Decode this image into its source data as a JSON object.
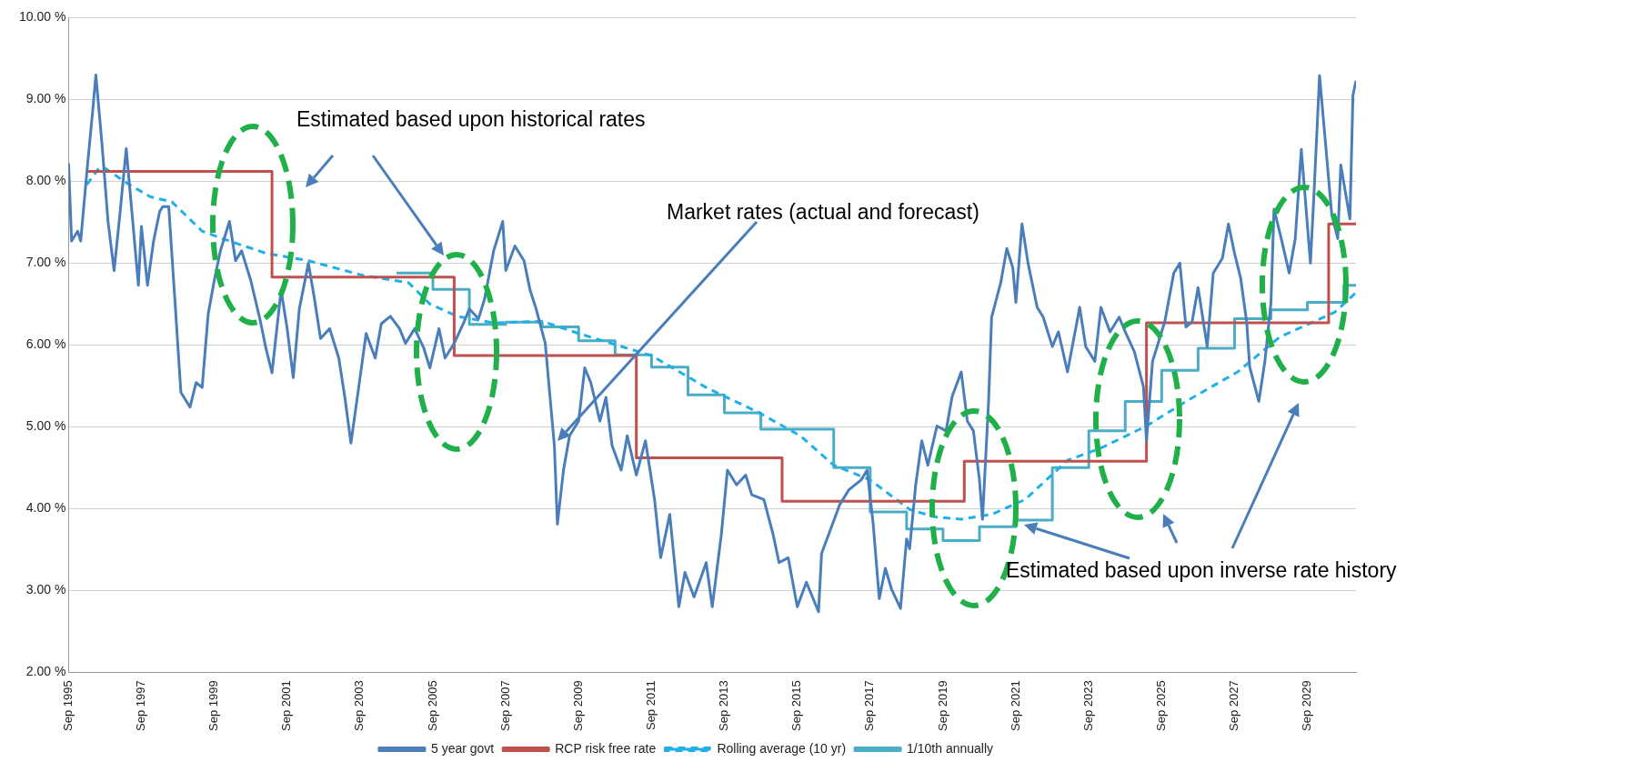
{
  "chart_data": {
    "type": "line",
    "xlim": [
      "1995-09",
      "2031-01"
    ],
    "ylim": [
      2,
      10
    ],
    "xticks": [
      {
        "value": "1995-09",
        "label": "Sep 1995"
      },
      {
        "value": "1997-09",
        "label": "Sep 1997"
      },
      {
        "value": "1999-09",
        "label": "Sep 1999"
      },
      {
        "value": "2001-09",
        "label": "Sep 2001"
      },
      {
        "value": "2003-09",
        "label": "Sep 2003"
      },
      {
        "value": "2005-09",
        "label": "Sep 2005"
      },
      {
        "value": "2007-09",
        "label": "Sep 2007"
      },
      {
        "value": "2009-09",
        "label": "Sep 2009"
      },
      {
        "value": "2011-09",
        "label": "Sep 2011"
      },
      {
        "value": "2013-09",
        "label": "Sep 2013"
      },
      {
        "value": "2015-09",
        "label": "Sep 2015"
      },
      {
        "value": "2017-09",
        "label": "Sep 2017"
      },
      {
        "value": "2019-09",
        "label": "Sep 2019"
      },
      {
        "value": "2021-09",
        "label": "Sep 2021"
      },
      {
        "value": "2023-09",
        "label": "Sep 2023"
      },
      {
        "value": "2025-09",
        "label": "Sep 2025"
      },
      {
        "value": "2027-09",
        "label": "Sep 2027"
      },
      {
        "value": "2029-09",
        "label": "Sep 2029"
      }
    ],
    "yticks": [
      {
        "value": 2,
        "label": "2.00 %"
      },
      {
        "value": 3,
        "label": "3.00 %"
      },
      {
        "value": 4,
        "label": "4.00 %"
      },
      {
        "value": 5,
        "label": "5.00 %"
      },
      {
        "value": 6,
        "label": "6.00 %"
      },
      {
        "value": 7,
        "label": "7.00 %"
      },
      {
        "value": 8,
        "label": "8.00 %"
      },
      {
        "value": 9,
        "label": "9.00 %"
      },
      {
        "value": 10,
        "label": "10.00 %"
      }
    ],
    "grid": "y",
    "legend": "bottom",
    "marker": "none",
    "annotations": [
      "Estimated based upon historical rates",
      "Market rates (actual and forecast)",
      "Estimated based upon inverse rate history"
    ],
    "series": [
      {
        "name": "5 year govt",
        "type": "line",
        "color": "#4a7ebb",
        "x": [
          "1995-09",
          "1995-10",
          "1995-12",
          "1996-01",
          "1996-03",
          "1996-05",
          "1996-06",
          "1996-08",
          "1996-10",
          "1996-12",
          "1997-02",
          "1997-04",
          "1997-06",
          "1997-08",
          "1997-09",
          "1997-11",
          "1998-01",
          "1998-03",
          "1998-04",
          "1998-06",
          "1998-08",
          "1998-10",
          "1999-01",
          "1999-03",
          "1999-05",
          "1999-07",
          "1999-09",
          "1999-11",
          "2000-02",
          "2000-04",
          "2000-06",
          "2000-09",
          "2000-12",
          "2001-02",
          "2001-04",
          "2001-07",
          "2001-09",
          "2001-11",
          "2002-01",
          "2002-04",
          "2002-06",
          "2002-08",
          "2002-11",
          "2003-02",
          "2003-04",
          "2003-06",
          "2003-09",
          "2003-11",
          "2004-02",
          "2004-04",
          "2004-07",
          "2004-10",
          "2004-12",
          "2005-03",
          "2005-06",
          "2005-08",
          "2005-11",
          "2006-01",
          "2006-04",
          "2006-07",
          "2006-09",
          "2006-12",
          "2007-02",
          "2007-05",
          "2007-08",
          "2007-09",
          "2007-12",
          "2008-03",
          "2008-05",
          "2008-07",
          "2008-10",
          "2008-11",
          "2009-01",
          "2009-02",
          "2009-04",
          "2009-06",
          "2009-09",
          "2009-11",
          "2010-01",
          "2010-04",
          "2010-06",
          "2010-08",
          "2010-11",
          "2011-01",
          "2011-04",
          "2011-07",
          "2011-10",
          "2011-12",
          "2012-03",
          "2012-06",
          "2012-08",
          "2012-11",
          "2013-03",
          "2013-05",
          "2013-08",
          "2013-10",
          "2014-01",
          "2014-04",
          "2014-06",
          "2014-10",
          "2015-01",
          "2015-03",
          "2015-06",
          "2015-09",
          "2015-12",
          "2016-04",
          "2016-05",
          "2016-08",
          "2016-11",
          "2017-02",
          "2017-06",
          "2017-08",
          "2017-10",
          "2017-12",
          "2018-02",
          "2018-04",
          "2018-07",
          "2018-09",
          "2018-10",
          "2018-12",
          "2019-02",
          "2019-04",
          "2019-07",
          "2019-10",
          "2019-12",
          "2020-03",
          "2020-05",
          "2020-07",
          "2020-09",
          "2020-10",
          "2020-12",
          "2021-01",
          "2021-04",
          "2021-06",
          "2021-08",
          "2021-09",
          "2021-11",
          "2022-01",
          "2022-04",
          "2022-06",
          "2022-09",
          "2022-11",
          "2023-02",
          "2023-06",
          "2023-08",
          "2023-11",
          "2024-01",
          "2024-04",
          "2024-07",
          "2024-09",
          "2024-12",
          "2025-03",
          "2025-04",
          "2025-06",
          "2025-08",
          "2025-10",
          "2026-01",
          "2026-03",
          "2026-05",
          "2026-07",
          "2026-09",
          "2026-12",
          "2027-02",
          "2027-05",
          "2027-07",
          "2027-09",
          "2027-11",
          "2028-01",
          "2028-02",
          "2028-05",
          "2028-07",
          "2028-09",
          "2028-10",
          "2028-12",
          "2029-03",
          "2029-05",
          "2029-07",
          "2029-10",
          "2029-11",
          "2030-01",
          "2030-03",
          "2030-05",
          "2030-07",
          "2030-08",
          "2030-11",
          "2030-12",
          "2031-01"
        ],
        "values": [
          8.22,
          7.27,
          7.39,
          7.27,
          8.1,
          8.88,
          9.3,
          8.46,
          7.51,
          6.91,
          7.63,
          8.4,
          7.57,
          6.73,
          7.45,
          6.73,
          7.27,
          7.63,
          7.69,
          7.69,
          6.56,
          5.42,
          5.24,
          5.54,
          5.48,
          6.38,
          6.79,
          7.15,
          7.51,
          7.03,
          7.15,
          6.79,
          6.32,
          5.96,
          5.66,
          6.67,
          6.2,
          5.6,
          6.44,
          7.0,
          6.56,
          6.08,
          6.2,
          5.84,
          5.36,
          4.8,
          5.6,
          6.14,
          5.84,
          6.26,
          6.35,
          6.2,
          6.02,
          6.2,
          5.96,
          5.72,
          6.2,
          5.84,
          6.02,
          6.26,
          6.44,
          6.32,
          6.56,
          7.15,
          7.51,
          6.91,
          7.21,
          7.03,
          6.67,
          6.44,
          6.02,
          5.6,
          4.77,
          3.81,
          4.47,
          4.89,
          5.07,
          5.72,
          5.54,
          5.07,
          5.36,
          4.77,
          4.47,
          4.89,
          4.41,
          4.83,
          4.11,
          3.4,
          3.93,
          2.8,
          3.22,
          2.92,
          3.34,
          2.8,
          3.69,
          4.47,
          4.29,
          4.41,
          4.17,
          4.11,
          3.69,
          3.34,
          3.4,
          2.8,
          3.1,
          2.74,
          3.45,
          3.75,
          4.05,
          4.23,
          4.35,
          4.47,
          3.81,
          2.9,
          3.27,
          3.02,
          2.78,
          3.63,
          3.51,
          4.29,
          4.83,
          4.53,
          5.01,
          4.95,
          5.37,
          5.67,
          5.07,
          4.95,
          4.35,
          3.87,
          5.31,
          6.34,
          6.76,
          7.18,
          6.94,
          6.52,
          7.48,
          7.0,
          6.46,
          6.34,
          5.98,
          6.16,
          5.67,
          6.46,
          5.98,
          5.8,
          6.46,
          6.16,
          6.34,
          6.16,
          5.92,
          5.49,
          4.83,
          5.8,
          6.04,
          6.28,
          6.88,
          7.0,
          6.22,
          6.28,
          6.7,
          5.98,
          6.88,
          7.06,
          7.48,
          7.12,
          6.82,
          6.28,
          5.73,
          5.31,
          5.8,
          6.52,
          7.66,
          7.36,
          6.88,
          7.3,
          8.39,
          7.0,
          7.72,
          9.29,
          8.45,
          7.6,
          7.3,
          8.2,
          7.54,
          9.05,
          9.23
        ]
      },
      {
        "name": "RCP risk free rate",
        "type": "step",
        "color": "#c0504d",
        "x": [
          "1996-03",
          "2001-04",
          "2006-04",
          "2011-04",
          "2015-04",
          "2020-04",
          "2025-04",
          "2030-04",
          "2031-01"
        ],
        "values": [
          8.12,
          6.83,
          5.87,
          4.62,
          4.09,
          4.58,
          6.27,
          7.48,
          7.48
        ]
      },
      {
        "name": "Rolling average (10 yr)",
        "type": "line",
        "line_style": "dashed",
        "color": "#1fb0e8",
        "x": [
          "1996-03",
          "1996-07",
          "1996-09",
          "1997-05",
          "1997-12",
          "1998-07",
          "1999-05",
          "2000-02",
          "2001-02",
          "2002-04",
          "2003-10",
          "2005-01",
          "2005-08",
          "2006-05",
          "2007-05",
          "2008-09",
          "2009-09",
          "2011-01",
          "2011-09",
          "2013-03",
          "2014-08",
          "2015-10",
          "2016-09",
          "2017-09",
          "2018-10",
          "2019-06",
          "2020-03",
          "2021-01",
          "2021-12",
          "2023-02",
          "2024-01",
          "2025-04",
          "2026-05",
          "2027-10",
          "2028-12",
          "2030-06",
          "2031-01"
        ],
        "values": [
          7.96,
          8.16,
          8.16,
          7.96,
          7.81,
          7.75,
          7.39,
          7.27,
          7.12,
          7.03,
          6.85,
          6.76,
          6.5,
          6.35,
          6.27,
          6.29,
          6.14,
          5.96,
          5.87,
          5.48,
          5.18,
          4.89,
          4.53,
          4.35,
          3.99,
          3.9,
          3.87,
          3.93,
          4.11,
          4.59,
          4.74,
          5.01,
          5.31,
          5.67,
          6.1,
          6.4,
          6.64
        ]
      },
      {
        "name": "1/10th annually",
        "type": "step",
        "color": "#4bacc6",
        "x": [
          "2004-09",
          "2005-09",
          "2006-09",
          "2007-09",
          "2008-09",
          "2009-09",
          "2010-09",
          "2011-09",
          "2012-09",
          "2013-09",
          "2014-09",
          "2016-09",
          "2017-09",
          "2018-09",
          "2019-09",
          "2020-09",
          "2021-09",
          "2022-09",
          "2023-09",
          "2024-09",
          "2025-09",
          "2026-09",
          "2027-09",
          "2028-09",
          "2029-09",
          "2030-09",
          "2031-01"
        ],
        "values": [
          6.88,
          6.68,
          6.25,
          6.28,
          6.22,
          6.05,
          5.88,
          5.73,
          5.39,
          5.17,
          4.97,
          4.5,
          3.96,
          3.75,
          3.61,
          3.78,
          3.86,
          4.5,
          4.95,
          5.31,
          5.69,
          5.96,
          6.32,
          6.43,
          6.52,
          6.73,
          6.73
        ]
      }
    ]
  }
}
